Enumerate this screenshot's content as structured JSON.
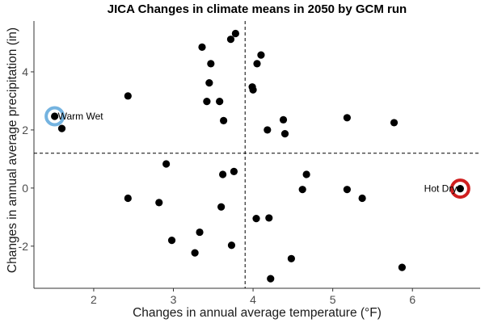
{
  "chart_data": {
    "type": "scatter",
    "title": "JICA Changes in climate means in 2050 by GCM run",
    "xlabel": "Changes in annual average temperature (°F)",
    "ylabel": "Changes in annual average precipitation (in)",
    "xlim": [
      1.25,
      6.85
    ],
    "ylim": [
      -3.45,
      5.75
    ],
    "xticks": [
      2,
      3,
      4,
      5,
      6
    ],
    "yticks": [
      -2,
      0,
      2,
      4
    ],
    "ytick_labels": [
      "-2",
      "0",
      "2",
      "4"
    ],
    "grid": false,
    "ref_lines": {
      "x": 3.9,
      "y": 1.2
    },
    "point_color": "#000000",
    "points": [
      {
        "x": 1.51,
        "y": 2.47
      },
      {
        "x": 1.6,
        "y": 2.05
      },
      {
        "x": 2.43,
        "y": 3.17
      },
      {
        "x": 2.43,
        "y": -0.35
      },
      {
        "x": 2.82,
        "y": -0.5
      },
      {
        "x": 2.91,
        "y": 0.83
      },
      {
        "x": 2.98,
        "y": -1.8
      },
      {
        "x": 3.27,
        "y": -2.23
      },
      {
        "x": 3.33,
        "y": -1.52
      },
      {
        "x": 3.36,
        "y": 4.85
      },
      {
        "x": 3.42,
        "y": 2.98
      },
      {
        "x": 3.45,
        "y": 3.62
      },
      {
        "x": 3.47,
        "y": 4.28
      },
      {
        "x": 3.58,
        "y": 2.98
      },
      {
        "x": 3.6,
        "y": -0.65
      },
      {
        "x": 3.62,
        "y": 0.47
      },
      {
        "x": 3.63,
        "y": 2.32
      },
      {
        "x": 3.72,
        "y": 5.12
      },
      {
        "x": 3.73,
        "y": -1.97
      },
      {
        "x": 3.76,
        "y": 0.57
      },
      {
        "x": 3.78,
        "y": 5.32
      },
      {
        "x": 3.99,
        "y": 3.48
      },
      {
        "x": 4.0,
        "y": 3.38
      },
      {
        "x": 4.04,
        "y": -1.05
      },
      {
        "x": 4.05,
        "y": 4.28
      },
      {
        "x": 4.1,
        "y": 4.58
      },
      {
        "x": 4.18,
        "y": 2.0
      },
      {
        "x": 4.2,
        "y": -1.03
      },
      {
        "x": 4.22,
        "y": -3.12
      },
      {
        "x": 4.38,
        "y": 2.35
      },
      {
        "x": 4.4,
        "y": 1.87
      },
      {
        "x": 4.48,
        "y": -2.43
      },
      {
        "x": 4.62,
        "y": -0.05
      },
      {
        "x": 4.67,
        "y": 0.47
      },
      {
        "x": 5.18,
        "y": 2.42
      },
      {
        "x": 5.18,
        "y": -0.05
      },
      {
        "x": 5.37,
        "y": -0.35
      },
      {
        "x": 5.77,
        "y": 2.25
      },
      {
        "x": 5.87,
        "y": -2.73
      },
      {
        "x": 6.6,
        "y": -0.02
      }
    ],
    "annotations": [
      {
        "label": "Warm Wet",
        "x": 1.51,
        "y": 2.47,
        "ring_color": "#74b3e0",
        "label_side": "right"
      },
      {
        "label": "Hot Dry",
        "x": 6.6,
        "y": -0.02,
        "ring_color": "#d01f1f",
        "label_side": "left"
      }
    ]
  }
}
